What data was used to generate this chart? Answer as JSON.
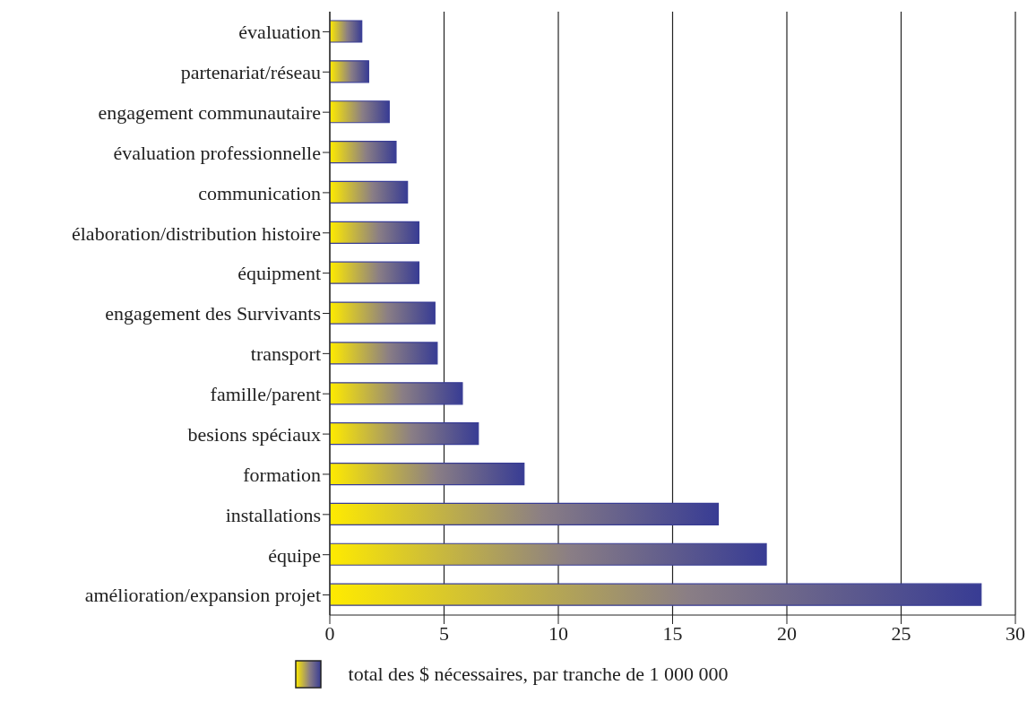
{
  "chart_data": {
    "type": "bar",
    "orientation": "horizontal",
    "categories": [
      "évaluation",
      "partenariat/réseau",
      "engagement communautaire",
      "évaluation professionnelle",
      "communication",
      "élaboration/distribution histoire",
      "équipment",
      "engagement des Survivants",
      "transport",
      "famille/parent",
      "besions spéciaux",
      "formation",
      "installations",
      "équipe",
      "amélioration/expansion projet"
    ],
    "series": [
      {
        "name": "total des $ nécessaires, par tranche de 1 000 000",
        "color": "#383c94",
        "values": [
          1.4,
          1.7,
          2.6,
          2.9,
          3.4,
          3.9,
          3.9,
          4.6,
          4.7,
          5.8,
          6.5,
          8.5,
          17.0,
          19.1,
          28.5
        ]
      }
    ],
    "xlim": [
      0,
      30
    ],
    "xticks": [
      0,
      5,
      10,
      15,
      20,
      25,
      30
    ],
    "grid": "x",
    "legend": "bottom"
  }
}
